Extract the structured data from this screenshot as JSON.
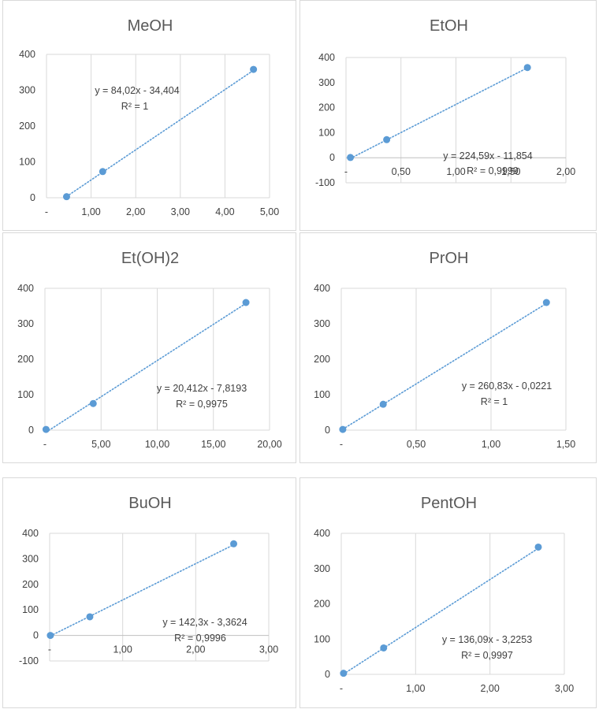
{
  "style": {
    "marker_color": "#5b9bd5",
    "trend_color": "#5b9bd5",
    "grid_color": "#d9d9d9",
    "text_color": "#404040"
  },
  "chart_data": [
    {
      "type": "scatter",
      "title": "MeOH",
      "x": [
        0.45,
        1.26,
        4.64
      ],
      "y": [
        3,
        73,
        358
      ],
      "xlim": [
        0,
        5
      ],
      "ylim": [
        0,
        400
      ],
      "xticks": [
        0,
        1,
        2,
        3,
        4,
        5
      ],
      "xtick_labels": [
        "-",
        "1,00",
        "2,00",
        "3,00",
        "4,00",
        "5,00"
      ],
      "yticks": [
        0,
        100,
        200,
        300,
        400
      ],
      "ytick_labels": [
        "0",
        "100",
        "200",
        "300",
        "400"
      ],
      "grid": "vertical",
      "trendline": {
        "type": "linear",
        "slope": 84.02,
        "intercept": -34.404
      },
      "equation": "y = 84,02x - 34,404",
      "r2": "R² = 1"
    },
    {
      "type": "scatter",
      "title": "EtOH",
      "x": [
        0.04,
        0.37,
        1.65
      ],
      "y": [
        1,
        72,
        360
      ],
      "xlim": [
        0,
        2
      ],
      "ylim": [
        -100,
        400
      ],
      "xticks": [
        0,
        0.5,
        1,
        1.5,
        2
      ],
      "xtick_labels": [
        "-",
        "0,50",
        "1,00",
        "1,50",
        "2,00"
      ],
      "yticks": [
        -100,
        0,
        100,
        200,
        300,
        400
      ],
      "ytick_labels": [
        "-100",
        "0",
        "100",
        "200",
        "300",
        "400"
      ],
      "grid": "vertical",
      "trendline": {
        "type": "linear",
        "slope": 224.59,
        "intercept": -11.854
      },
      "equation": "y = 224,59x - 11,854",
      "r2": "R² = 0,9999"
    },
    {
      "type": "scatter",
      "title": "Et(OH)2",
      "x": [
        0.1,
        4.3,
        17.9
      ],
      "y": [
        2,
        75,
        360
      ],
      "xlim": [
        0,
        20
      ],
      "ylim": [
        0,
        400
      ],
      "xticks": [
        0,
        5,
        10,
        15,
        20
      ],
      "xtick_labels": [
        "-",
        "5,00",
        "10,00",
        "15,00",
        "20,00"
      ],
      "yticks": [
        0,
        100,
        200,
        300,
        400
      ],
      "ytick_labels": [
        "0",
        "100",
        "200",
        "300",
        "400"
      ],
      "grid": "vertical",
      "trendline": {
        "type": "linear",
        "slope": 20.412,
        "intercept": -7.8193
      },
      "equation": "y = 20,412x - 7,8193",
      "r2": "R² = 0,9975"
    },
    {
      "type": "scatter",
      "title": "PrOH",
      "x": [
        0.01,
        0.28,
        1.37
      ],
      "y": [
        2,
        73,
        360
      ],
      "xlim": [
        0,
        1.5
      ],
      "ylim": [
        0,
        400
      ],
      "xticks": [
        0,
        0.5,
        1,
        1.5
      ],
      "xtick_labels": [
        "-",
        "0,50",
        "1,00",
        "1,50"
      ],
      "yticks": [
        0,
        100,
        200,
        300,
        400
      ],
      "ytick_labels": [
        "0",
        "100",
        "200",
        "300",
        "400"
      ],
      "grid": "vertical",
      "trendline": {
        "type": "linear",
        "slope": 260.83,
        "intercept": -0.0221
      },
      "equation": "y = 260,83x - 0,0221",
      "r2": "R² = 1"
    },
    {
      "type": "scatter",
      "title": "BuOH",
      "x": [
        0.01,
        0.55,
        2.52
      ],
      "y": [
        0,
        73,
        359
      ],
      "xlim": [
        0,
        3
      ],
      "ylim": [
        -100,
        400
      ],
      "xticks": [
        0,
        1,
        2,
        3
      ],
      "xtick_labels": [
        "-",
        "1,00",
        "2,00",
        "3,00"
      ],
      "yticks": [
        -100,
        0,
        100,
        200,
        300,
        400
      ],
      "ytick_labels": [
        "-100",
        "0",
        "100",
        "200",
        "300",
        "400"
      ],
      "grid": "vertical",
      "trendline": {
        "type": "linear",
        "slope": 142.3,
        "intercept": -3.3624
      },
      "equation": "y = 142,3x - 3,3624",
      "r2": "R² = 0,9996"
    },
    {
      "type": "scatter",
      "title": "PentOH",
      "x": [
        0.03,
        0.57,
        2.65
      ],
      "y": [
        3,
        75,
        361
      ],
      "xlim": [
        0,
        3
      ],
      "ylim": [
        0,
        400
      ],
      "xticks": [
        0,
        1,
        2,
        3
      ],
      "xtick_labels": [
        "-",
        "1,00",
        "2,00",
        "3,00"
      ],
      "yticks": [
        0,
        100,
        200,
        300,
        400
      ],
      "ytick_labels": [
        "0",
        "100",
        "200",
        "300",
        "400"
      ],
      "grid": "vertical",
      "trendline": {
        "type": "linear",
        "slope": 136.09,
        "intercept": -3.2253
      },
      "equation": "y = 136,09x - 3,2253",
      "r2": "R² = 0,9997"
    }
  ]
}
